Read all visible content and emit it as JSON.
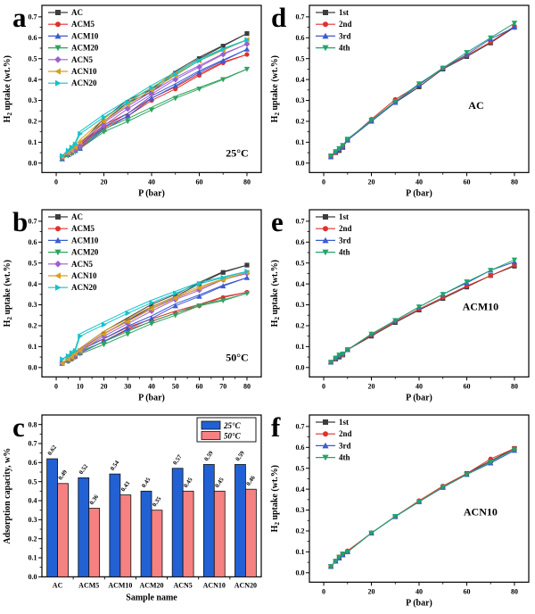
{
  "figure": {
    "background": "#ffffff"
  },
  "chart_data": [
    {
      "panel_label": "a",
      "type": "line",
      "xlabel": "P (bar)",
      "ylabel": "H2 uptake (wt.%)",
      "annotation": {
        "text": "25°C",
        "fx": 0.89,
        "fy": 0.095
      },
      "xlim": [
        -6,
        86
      ],
      "ylim": [
        -0.045,
        0.755
      ],
      "xticks": [
        0,
        20,
        40,
        60,
        80
      ],
      "yticks": [
        0,
        0.1,
        0.2,
        0.3,
        0.4,
        0.5,
        0.6,
        0.7
      ],
      "legend_position": "top-left",
      "hysteresis": true,
      "x": [
        2.5,
        5,
        6.5,
        8,
        10,
        20,
        30,
        40,
        50,
        60,
        70,
        80
      ],
      "series": [
        {
          "name": "AC",
          "color": "#3d3d3d",
          "marker": "square",
          "values": [
            0.03,
            0.045,
            0.055,
            0.065,
            0.08,
            0.2,
            0.29,
            0.34,
            0.43,
            0.5,
            0.56,
            0.62
          ]
        },
        {
          "name": "ACM5",
          "color": "#e0312e",
          "marker": "circle",
          "values": [
            0.025,
            0.04,
            0.05,
            0.06,
            0.075,
            0.17,
            0.225,
            0.3,
            0.355,
            0.42,
            0.48,
            0.52
          ]
        },
        {
          "name": "ACM10",
          "color": "#3c5bd1",
          "marker": "triangle-up",
          "values": [
            0.02,
            0.04,
            0.05,
            0.06,
            0.07,
            0.16,
            0.225,
            0.31,
            0.37,
            0.435,
            0.49,
            0.545
          ]
        },
        {
          "name": "ACM20",
          "color": "#2fa35f",
          "marker": "triangle-down",
          "values": [
            0.02,
            0.035,
            0.045,
            0.055,
            0.07,
            0.15,
            0.2,
            0.255,
            0.31,
            0.355,
            0.4,
            0.45
          ]
        },
        {
          "name": "ACN5",
          "color": "#9d5fd3",
          "marker": "diamond",
          "values": [
            0.03,
            0.045,
            0.055,
            0.065,
            0.08,
            0.18,
            0.26,
            0.33,
            0.4,
            0.46,
            0.52,
            0.57
          ]
        },
        {
          "name": "ACN10",
          "color": "#d7a021",
          "marker": "triangle-left",
          "values": [
            0.03,
            0.05,
            0.06,
            0.075,
            0.1,
            0.2,
            0.28,
            0.35,
            0.42,
            0.49,
            0.54,
            0.59
          ]
        },
        {
          "name": "ACN20",
          "color": "#16c2c9",
          "marker": "triangle-right",
          "values": [
            0.035,
            0.06,
            0.075,
            0.09,
            0.14,
            0.22,
            0.29,
            0.36,
            0.425,
            0.49,
            0.545,
            0.59
          ]
        }
      ]
    },
    {
      "panel_label": "b",
      "type": "line",
      "xlabel": "P (bar)",
      "ylabel": "H2 uptake (wt.%)",
      "annotation": {
        "text": "50°C",
        "fx": 0.89,
        "fy": 0.095
      },
      "xlim": [
        -6,
        86
      ],
      "ylim": [
        -0.045,
        0.755
      ],
      "xticks": [
        0,
        10,
        20,
        30,
        40,
        50,
        60,
        70,
        80
      ],
      "yticks": [
        0,
        0.1,
        0.2,
        0.3,
        0.4,
        0.5,
        0.6,
        0.7
      ],
      "legend_position": "top-left",
      "hysteresis": true,
      "x": [
        2.5,
        5,
        6.5,
        8,
        10,
        20,
        30,
        40,
        50,
        60,
        70,
        80
      ],
      "series": [
        {
          "name": "AC",
          "color": "#3d3d3d",
          "marker": "square",
          "values": [
            0.02,
            0.04,
            0.05,
            0.06,
            0.08,
            0.16,
            0.225,
            0.29,
            0.34,
            0.4,
            0.455,
            0.49
          ]
        },
        {
          "name": "ACM5",
          "color": "#e0312e",
          "marker": "circle",
          "values": [
            0.02,
            0.03,
            0.04,
            0.05,
            0.07,
            0.125,
            0.18,
            0.22,
            0.26,
            0.295,
            0.335,
            0.36
          ]
        },
        {
          "name": "ACM10",
          "color": "#3c5bd1",
          "marker": "triangle-up",
          "values": [
            0.02,
            0.035,
            0.045,
            0.055,
            0.07,
            0.125,
            0.185,
            0.235,
            0.295,
            0.34,
            0.39,
            0.43
          ]
        },
        {
          "name": "ACM20",
          "color": "#2fa35f",
          "marker": "triangle-down",
          "values": [
            0.02,
            0.03,
            0.04,
            0.05,
            0.065,
            0.11,
            0.16,
            0.21,
            0.25,
            0.295,
            0.32,
            0.355
          ]
        },
        {
          "name": "ACN5",
          "color": "#9d5fd3",
          "marker": "diamond",
          "values": [
            0.02,
            0.04,
            0.05,
            0.06,
            0.075,
            0.15,
            0.21,
            0.27,
            0.325,
            0.37,
            0.42,
            0.45
          ]
        },
        {
          "name": "ACN10",
          "color": "#d7a021",
          "marker": "triangle-left",
          "values": [
            0.02,
            0.04,
            0.05,
            0.065,
            0.08,
            0.16,
            0.22,
            0.28,
            0.33,
            0.38,
            0.42,
            0.455
          ]
        },
        {
          "name": "ACN20",
          "color": "#16c2c9",
          "marker": "triangle-right",
          "values": [
            0.04,
            0.055,
            0.07,
            0.08,
            0.15,
            0.205,
            0.26,
            0.31,
            0.355,
            0.4,
            0.43,
            0.46
          ]
        }
      ]
    },
    {
      "panel_label": "c",
      "type": "bar",
      "xlabel": "Sample name",
      "ylabel": "Adsorption capacity, w%",
      "ylim": [
        0,
        0.85
      ],
      "yticks": [
        0,
        0.1,
        0.2,
        0.3,
        0.4,
        0.5,
        0.6,
        0.7,
        0.8
      ],
      "legend_position": "top-right",
      "bar_value_labels": true,
      "categories": [
        "AC",
        "ACM5",
        "ACM10",
        "ACM20",
        "ACN5",
        "ACN10",
        "ACN20"
      ],
      "series": [
        {
          "name": "25°C",
          "color": "#2261d3",
          "values": [
            0.62,
            0.52,
            0.54,
            0.45,
            0.57,
            0.59,
            0.59
          ]
        },
        {
          "name": "50°C",
          "color": "#f58181",
          "values": [
            0.49,
            0.36,
            0.43,
            0.35,
            0.45,
            0.45,
            0.46
          ]
        }
      ]
    },
    {
      "panel_label": "d",
      "type": "line",
      "xlabel": "P (bar)",
      "ylabel": "H2 uptake (wt.%)",
      "annotation": {
        "text": "AC",
        "fx": 0.76,
        "fy": 0.38
      },
      "xlim": [
        -6,
        86
      ],
      "ylim": [
        -0.045,
        0.755
      ],
      "xticks": [
        0,
        20,
        40,
        60,
        80
      ],
      "yticks": [
        0,
        0.1,
        0.2,
        0.3,
        0.4,
        0.5,
        0.6,
        0.7
      ],
      "legend_position": "top-left",
      "hysteresis": false,
      "x": [
        3,
        5,
        6.5,
        8,
        10,
        20,
        30,
        40,
        50,
        60,
        70,
        80
      ],
      "series": [
        {
          "name": "1st",
          "color": "#3d3d3d",
          "marker": "square",
          "values": [
            0.03,
            0.05,
            0.06,
            0.075,
            0.11,
            0.2,
            0.29,
            0.365,
            0.45,
            0.51,
            0.575,
            0.65
          ]
        },
        {
          "name": "2nd",
          "color": "#e0312e",
          "marker": "circle",
          "values": [
            0.03,
            0.05,
            0.065,
            0.075,
            0.11,
            0.21,
            0.305,
            0.375,
            0.455,
            0.515,
            0.58,
            0.655
          ]
        },
        {
          "name": "3rd",
          "color": "#3c5bd1",
          "marker": "triangle-up",
          "values": [
            0.03,
            0.055,
            0.065,
            0.08,
            0.11,
            0.2,
            0.29,
            0.375,
            0.455,
            0.52,
            0.595,
            0.65
          ]
        },
        {
          "name": "4th",
          "color": "#21a56b",
          "marker": "triangle-down",
          "values": [
            0.035,
            0.055,
            0.07,
            0.085,
            0.115,
            0.205,
            0.295,
            0.38,
            0.455,
            0.53,
            0.6,
            0.67
          ]
        }
      ]
    },
    {
      "panel_label": "e",
      "type": "line",
      "xlabel": "P (bar)",
      "ylabel": "H2 uptake (wt.%)",
      "annotation": {
        "text": "ACM10",
        "fx": 0.78,
        "fy": 0.4
      },
      "xlim": [
        -6,
        86
      ],
      "ylim": [
        -0.045,
        0.755
      ],
      "xticks": [
        0,
        20,
        40,
        60,
        80
      ],
      "yticks": [
        0,
        0.1,
        0.2,
        0.3,
        0.4,
        0.5,
        0.6,
        0.7
      ],
      "legend_position": "top-left",
      "hysteresis": false,
      "x": [
        3,
        5,
        6.5,
        8,
        10,
        20,
        30,
        40,
        50,
        60,
        70,
        80
      ],
      "series": [
        {
          "name": "1st",
          "color": "#3d3d3d",
          "marker": "square",
          "values": [
            0.025,
            0.04,
            0.05,
            0.06,
            0.085,
            0.15,
            0.215,
            0.275,
            0.33,
            0.385,
            0.44,
            0.485
          ]
        },
        {
          "name": "2nd",
          "color": "#e0312e",
          "marker": "circle",
          "values": [
            0.025,
            0.04,
            0.055,
            0.06,
            0.085,
            0.155,
            0.22,
            0.28,
            0.335,
            0.39,
            0.44,
            0.49
          ]
        },
        {
          "name": "3rd",
          "color": "#3c5bd1",
          "marker": "triangle-up",
          "values": [
            0.025,
            0.045,
            0.055,
            0.065,
            0.085,
            0.16,
            0.225,
            0.29,
            0.35,
            0.405,
            0.465,
            0.505
          ]
        },
        {
          "name": "4th",
          "color": "#21a56b",
          "marker": "triangle-down",
          "values": [
            0.025,
            0.045,
            0.06,
            0.065,
            0.085,
            0.16,
            0.225,
            0.29,
            0.35,
            0.41,
            0.465,
            0.515
          ]
        }
      ]
    },
    {
      "panel_label": "f",
      "type": "line",
      "xlabel": "P (bar)",
      "ylabel": "H2 uptake (wt.%)",
      "annotation": {
        "text": "ACN10",
        "fx": 0.78,
        "fy": 0.4
      },
      "xlim": [
        -6,
        86
      ],
      "ylim": [
        -0.045,
        0.755
      ],
      "xticks": [
        0,
        20,
        40,
        60,
        80
      ],
      "yticks": [
        0,
        0.1,
        0.2,
        0.3,
        0.4,
        0.5,
        0.6,
        0.7
      ],
      "legend_position": "top-left",
      "hysteresis": false,
      "x": [
        3,
        5,
        6.5,
        8,
        10,
        20,
        30,
        40,
        50,
        60,
        70,
        80
      ],
      "series": [
        {
          "name": "1st",
          "color": "#3d3d3d",
          "marker": "square",
          "values": [
            0.03,
            0.055,
            0.075,
            0.09,
            0.1,
            0.19,
            0.27,
            0.34,
            0.41,
            0.475,
            0.535,
            0.595
          ]
        },
        {
          "name": "2nd",
          "color": "#e0312e",
          "marker": "circle",
          "values": [
            0.03,
            0.055,
            0.075,
            0.09,
            0.105,
            0.19,
            0.27,
            0.345,
            0.415,
            0.475,
            0.545,
            0.595
          ]
        },
        {
          "name": "3rd",
          "color": "#3c5bd1",
          "marker": "triangle-up",
          "values": [
            0.03,
            0.055,
            0.07,
            0.085,
            0.1,
            0.19,
            0.268,
            0.34,
            0.408,
            0.47,
            0.525,
            0.585
          ]
        },
        {
          "name": "4th",
          "color": "#21a56b",
          "marker": "triangle-down",
          "values": [
            0.03,
            0.055,
            0.075,
            0.09,
            0.1,
            0.19,
            0.27,
            0.34,
            0.41,
            0.47,
            0.53,
            0.59
          ]
        }
      ]
    }
  ]
}
